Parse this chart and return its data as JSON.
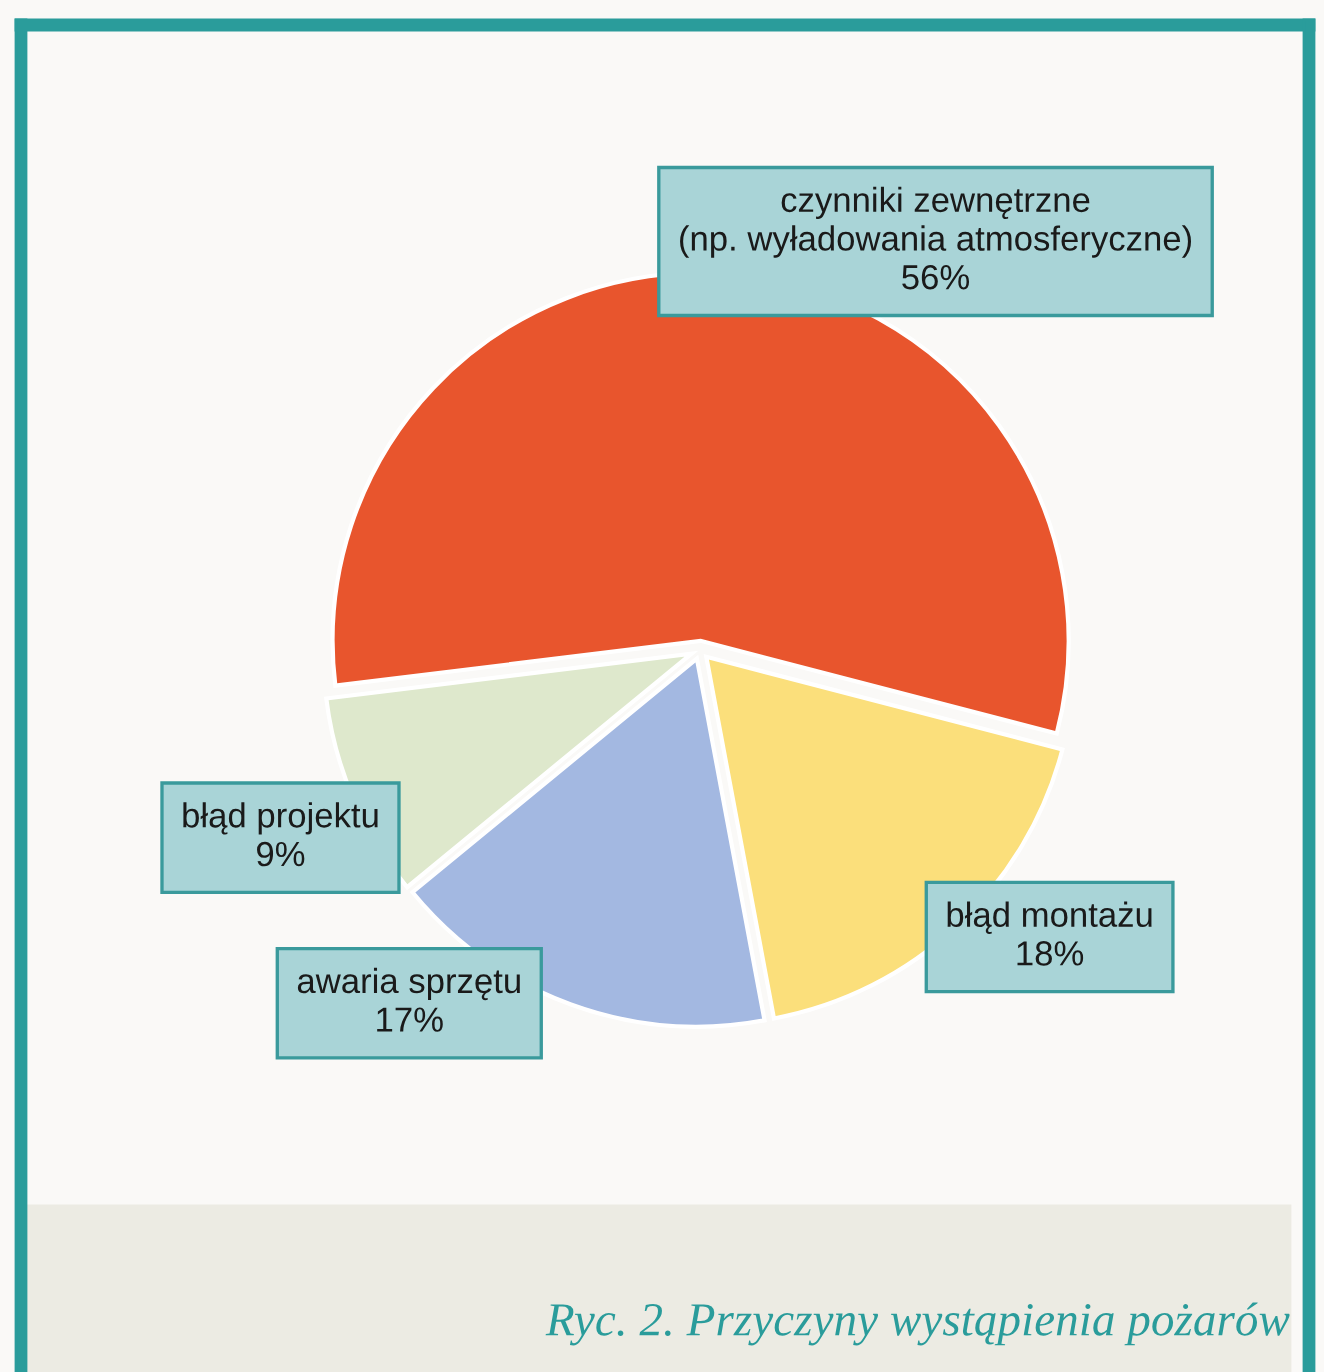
{
  "chart_data": {
    "type": "pie",
    "title": "Ryc. 2. Przyczyny wystąpienia pożarów",
    "categories": [
      "czynniki zewnętrzne\n(np. wyładowania atmosferyczne)",
      "błąd montażu",
      "awaria sprzętu",
      "błąd projektu"
    ],
    "values": [
      56,
      18,
      17,
      9
    ],
    "value_labels": [
      "56%",
      "18%",
      "17%",
      "9%"
    ],
    "colors": [
      "#e8552d",
      "#fbdf7b",
      "#a3b8e1",
      "#dee8cc"
    ]
  }
}
